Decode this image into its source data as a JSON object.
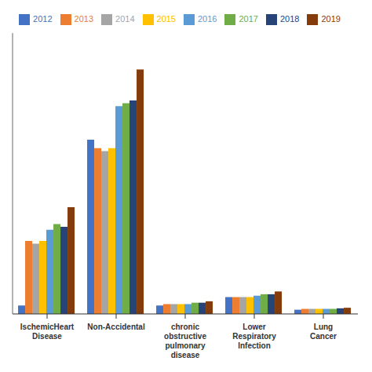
{
  "chart_data": {
    "type": "bar",
    "categories": [
      "IschemicHeart\nDisease",
      "Non-Accidental",
      "chronic\nobstructive\npulmonary\ndisease",
      "Lower\nRespiratory\nInfection",
      "Lung\nCancer"
    ],
    "series": [
      {
        "name": "2012",
        "color": "#4472C4",
        "values": [
          3,
          62,
          3,
          6,
          1.5
        ]
      },
      {
        "name": "2013",
        "color": "#ED7D31",
        "values": [
          26,
          59,
          3.5,
          6,
          1.8
        ]
      },
      {
        "name": "2014",
        "color": "#A5A5A5",
        "values": [
          25,
          58,
          3.5,
          6,
          1.8
        ]
      },
      {
        "name": "2015",
        "color": "#FFC000",
        "values": [
          26,
          59,
          3.5,
          6,
          1.8
        ]
      },
      {
        "name": "2016",
        "color": "#5B9BD5",
        "values": [
          30,
          74,
          3.5,
          6.5,
          1.8
        ]
      },
      {
        "name": "2017",
        "color": "#70AD47",
        "values": [
          32,
          75,
          4,
          7,
          1.8
        ]
      },
      {
        "name": "2018",
        "color": "#264478",
        "values": [
          31,
          76,
          4,
          7,
          2
        ]
      },
      {
        "name": "2019",
        "color": "#843C0C",
        "values": [
          38,
          87,
          4.5,
          8,
          2.2
        ]
      }
    ],
    "ylim": [
      0,
      100
    ],
    "legend": "top",
    "grid": false,
    "tick_labels": "x"
  }
}
